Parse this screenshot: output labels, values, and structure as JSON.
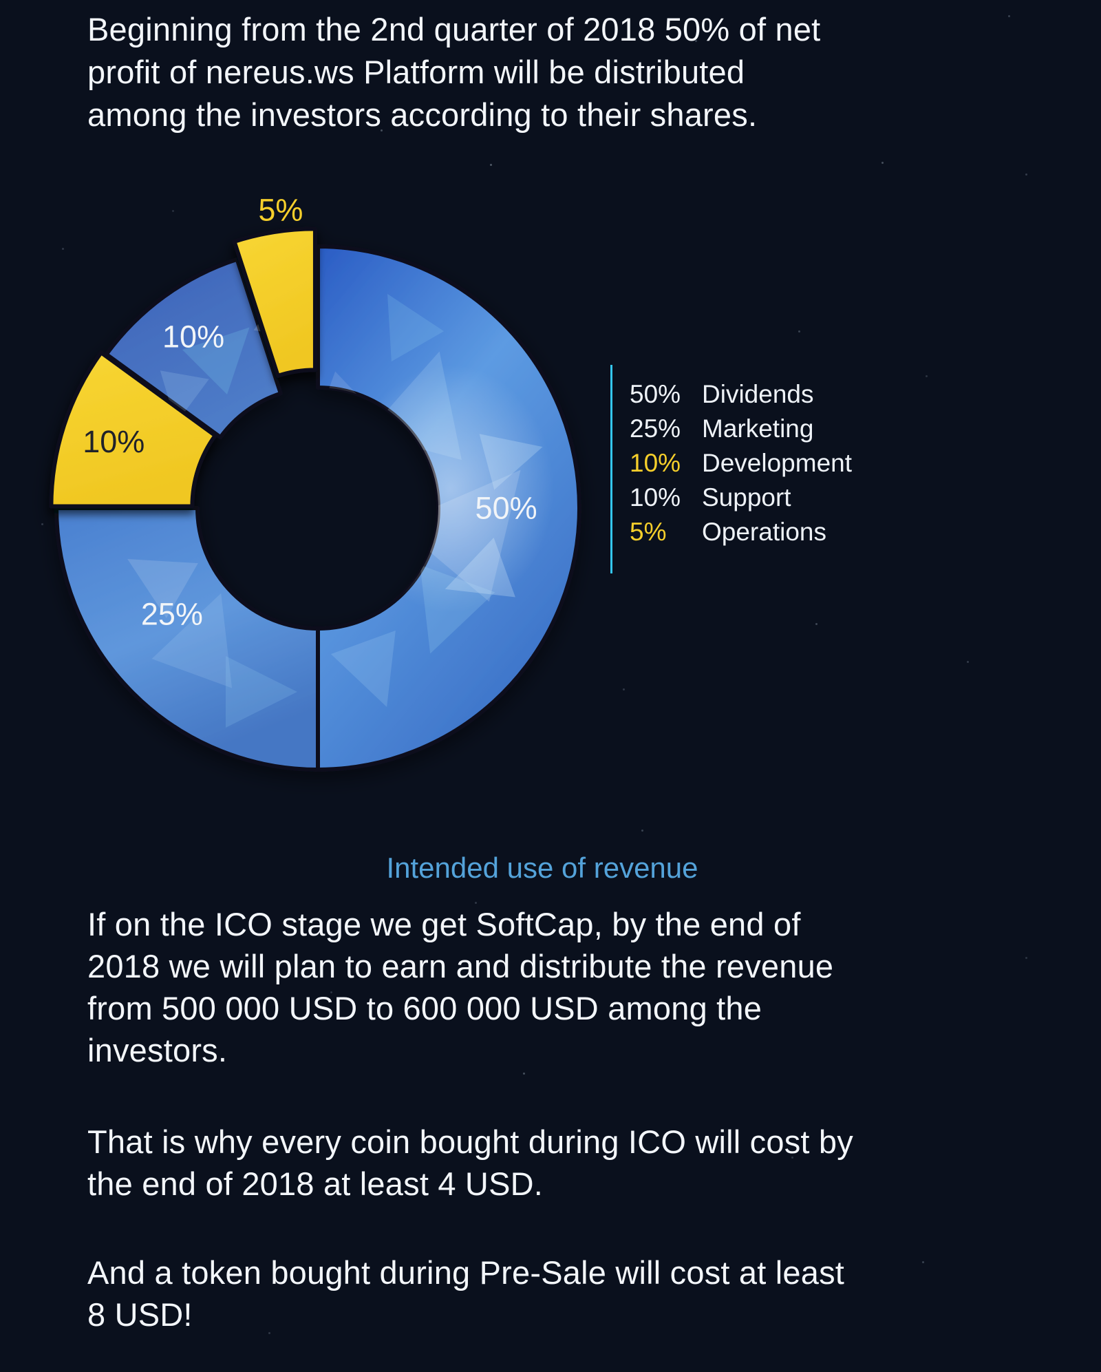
{
  "page": {
    "background_color": "#0a101d",
    "text_color": "#f3f6fa"
  },
  "texts": {
    "intro_lines": [
      "Beginning from the 2nd quarter of 2018 50% of net",
      "profit of nereus.ws Platform will be distributed",
      "among the investors according to their shares."
    ],
    "para1_lines": [
      "If on the ICO stage we get SoftCap, by the end of",
      "2018 we will plan to earn and distribute the revenue",
      "from 500 000 USD to 600 000 USD among the",
      "investors."
    ],
    "para2_lines": [
      "That is why every coin bought during ICO will cost by",
      "the end of 2018 at least 4 USD."
    ],
    "para3_lines": [
      "And a token bought during Pre-Sale will cost at least",
      "8 USD!"
    ]
  },
  "chart_data": {
    "type": "pie",
    "donut": true,
    "title": "Intended use of revenue",
    "title_color": "#54a3da",
    "unit": "%",
    "start_angle_deg": 0,
    "direction": "clockwise",
    "segments": [
      {
        "label": "Dividends",
        "value": 50,
        "display": "50%",
        "slice_color": "blue",
        "slice_label_color": "#f2f5f8",
        "label_r": 0.72,
        "label_angle_offset": 0,
        "explode": 0
      },
      {
        "label": "Marketing",
        "value": 25,
        "display": "25%",
        "slice_color": "blue-light",
        "slice_label_color": "#f2f5f8",
        "label_r": 0.69,
        "label_angle_offset": 9,
        "explode": 0
      },
      {
        "label": "Development",
        "value": 10,
        "display": "10%",
        "slice_color": "yellow",
        "slice_label_color": "#20222a",
        "label_r": 0.8,
        "label_angle_offset": 0,
        "explode": 8
      },
      {
        "label": "Support",
        "value": 10,
        "display": "10%",
        "slice_color": "blue-dark",
        "slice_label_color": "#f2f5f8",
        "label_r": 0.81,
        "label_angle_offset": 0,
        "explode": 0
      },
      {
        "label": "Operations",
        "value": 5,
        "display": "5%",
        "slice_color": "yellow",
        "slice_label_color": "#f6cf2b",
        "label_r": 1.08,
        "label_angle_offset": 2,
        "explode": 26
      }
    ]
  },
  "legend": {
    "accent_line_color": "#35c7f2",
    "rows": [
      {
        "pct": "50%",
        "label": "Dividends",
        "pct_color": "#eef2f7"
      },
      {
        "pct": "25%",
        "label": "Marketing",
        "pct_color": "#eef2f7"
      },
      {
        "pct": "10%",
        "label": "Development",
        "pct_color": "#f6cf2b"
      },
      {
        "pct": "10%",
        "label": "Support",
        "pct_color": "#eef2f7"
      },
      {
        "pct": "5%",
        "label": "Operations",
        "pct_color": "#f6cf2b"
      }
    ]
  },
  "colors": {
    "yellow": "#f6cf2b",
    "blue_main": "#3c72cd",
    "blue_light": "#4e86cf",
    "blue_dark": "#3d63b8",
    "caption_blue": "#54a3da",
    "legend_cyan": "#35c7f2"
  }
}
